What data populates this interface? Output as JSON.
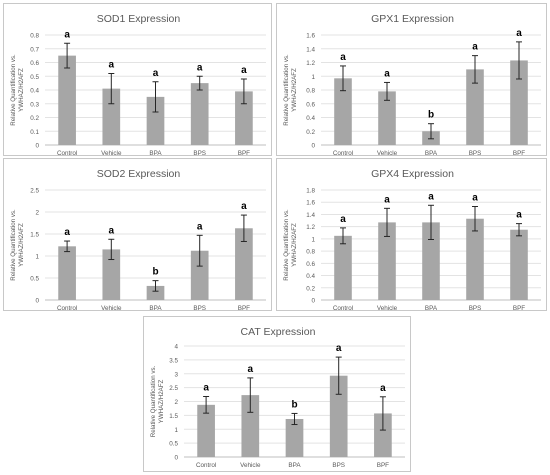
{
  "chart_data": [
    {
      "type": "bar",
      "title": "SOD1 Expression",
      "ylabel": "Relative Quantification vs. YWHAZ/H2AFZ",
      "categories": [
        "Control",
        "Vehicle",
        "BPA",
        "BPS",
        "BPF"
      ],
      "values": [
        0.65,
        0.41,
        0.35,
        0.45,
        0.39
      ],
      "errors": [
        0.09,
        0.11,
        0.11,
        0.05,
        0.09
      ],
      "letters": [
        "a",
        "a",
        "a",
        "a",
        "a"
      ],
      "yticks": [
        "0",
        "0.1",
        "0.2",
        "0.3",
        "0.4",
        "0.5",
        "0.6",
        "0.7",
        "0.8"
      ],
      "ylim": [
        0,
        0.8
      ],
      "grid": true,
      "bar_color": "#a6a6a6"
    },
    {
      "type": "bar",
      "title": "GPX1 Expression",
      "ylabel": "Relative Quantification vs. YWHAZ/H2AFZ",
      "categories": [
        "Control",
        "Vehicle",
        "BPA",
        "BPS",
        "BPF"
      ],
      "values": [
        0.97,
        0.78,
        0.2,
        1.1,
        1.23
      ],
      "errors": [
        0.18,
        0.13,
        0.11,
        0.2,
        0.27
      ],
      "letters": [
        "a",
        "a",
        "b",
        "a",
        "a"
      ],
      "yticks": [
        "0",
        "0.2",
        "0.4",
        "0.6",
        "0.8",
        "1",
        "1.2",
        "1.4",
        "1.6"
      ],
      "ylim": [
        0,
        1.6
      ],
      "grid": true,
      "bar_color": "#a6a6a6"
    },
    {
      "type": "bar",
      "title": "SOD2 Expression",
      "ylabel": "Relative Quantification vs. YWHAZ/H2AFZ",
      "categories": [
        "Control",
        "Vehicle",
        "BPA",
        "BPS",
        "BPF"
      ],
      "values": [
        1.22,
        1.15,
        0.32,
        1.12,
        1.63
      ],
      "errors": [
        0.12,
        0.23,
        0.12,
        0.35,
        0.3
      ],
      "letters": [
        "a",
        "a",
        "b",
        "a",
        "a"
      ],
      "yticks": [
        "0",
        "0.5",
        "1",
        "1.5",
        "2",
        "2.5"
      ],
      "ylim": [
        0,
        2.5
      ],
      "grid": true,
      "bar_color": "#a6a6a6"
    },
    {
      "type": "bar",
      "title": "GPX4 Expression",
      "ylabel": "Relative Quantification vs. YWHAZ/H2AFZ",
      "categories": [
        "Control",
        "Vehicle",
        "BPA",
        "BPS",
        "BPF"
      ],
      "values": [
        1.05,
        1.27,
        1.27,
        1.33,
        1.15
      ],
      "errors": [
        0.13,
        0.23,
        0.28,
        0.2,
        0.1
      ],
      "letters": [
        "a",
        "a",
        "a",
        "a",
        "a"
      ],
      "yticks": [
        "0",
        "0.2",
        "0.4",
        "0.6",
        "0.8",
        "1",
        "1.2",
        "1.4",
        "1.6",
        "1.8"
      ],
      "ylim": [
        0,
        1.8
      ],
      "grid": true,
      "bar_color": "#a6a6a6"
    },
    {
      "type": "bar",
      "title": "CAT Expression",
      "ylabel": "Relative Quantification vs. YWHAZ/H2AFZ",
      "categories": [
        "Control",
        "Vehicle",
        "BPA",
        "BPS",
        "BPF"
      ],
      "values": [
        1.88,
        2.23,
        1.37,
        2.93,
        1.57
      ],
      "errors": [
        0.3,
        0.62,
        0.2,
        0.67,
        0.6
      ],
      "letters": [
        "a",
        "a",
        "b",
        "a",
        "a"
      ],
      "yticks": [
        "0",
        "0.5",
        "1",
        "1.5",
        "2",
        "2.5",
        "3",
        "3.5",
        "4"
      ],
      "ylim": [
        0,
        4
      ],
      "grid": true,
      "bar_color": "#a6a6a6"
    }
  ]
}
